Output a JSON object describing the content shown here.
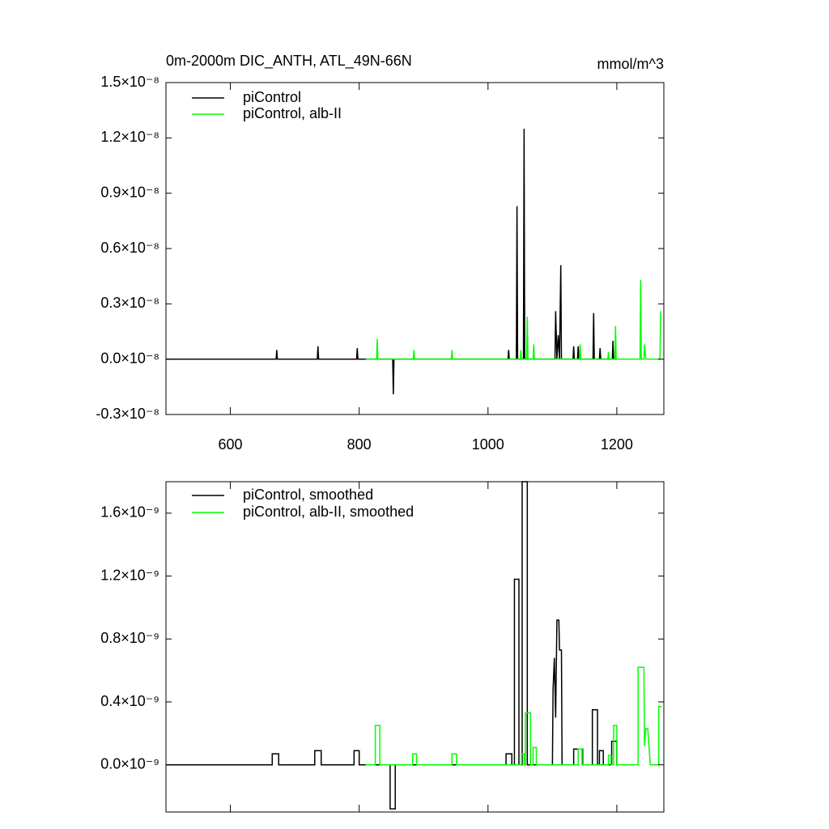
{
  "chart_data": [
    {
      "type": "line",
      "title": "0m-2000m DIC_ANTH, ATL_49N-66N",
      "units": "mmol/m^3",
      "legend": "upper left",
      "xlim": [
        500,
        1273
      ],
      "xticks": [
        600,
        800,
        1000,
        1200
      ],
      "show_xtick_labels": true,
      "ylim": [
        -3e-09,
        1.5e-08
      ],
      "yticks": [
        {
          "value": -3e-09,
          "label": "-0.3×10⁻⁸"
        },
        {
          "value": 0,
          "label": "0.0×10⁻⁸"
        },
        {
          "value": 3e-09,
          "label": "0.3×10⁻⁸"
        },
        {
          "value": 6e-09,
          "label": "0.6×10⁻⁸"
        },
        {
          "value": 9e-09,
          "label": "0.9×10⁻⁸"
        },
        {
          "value": 1.2e-08,
          "label": "1.2×10⁻⁸"
        },
        {
          "value": 1.5e-08,
          "label": "1.5×10⁻⁸"
        }
      ],
      "series": [
        {
          "name": "piControl",
          "color": "#000000",
          "x": [
            500,
            671,
            672,
            673,
            735,
            736,
            737,
            796,
            797,
            798,
            852,
            853,
            854,
            1031,
            1032,
            1033,
            1044,
            1045,
            1046,
            1055,
            1056,
            1057,
            1104,
            1105,
            1107,
            1109,
            1111,
            1113,
            1114,
            1132,
            1133,
            1134,
            1139,
            1140,
            1141,
            1163,
            1164,
            1165,
            1173,
            1174,
            1175,
            1193,
            1194,
            1195,
            1200
          ],
          "values": [
            0,
            0,
            5e-10,
            0,
            0,
            7e-10,
            0,
            0,
            6e-10,
            0,
            0,
            -1.9e-09,
            0,
            0,
            5e-10,
            0,
            0,
            8.3e-09,
            0,
            0,
            1.25e-08,
            0,
            0,
            2.6e-09,
            0,
            1.3e-09,
            0,
            5.1e-09,
            0,
            0,
            7e-10,
            0,
            0,
            7e-10,
            0,
            0,
            2.5e-09,
            0,
            0,
            6e-10,
            0,
            0,
            1e-09,
            0,
            0
          ]
        },
        {
          "name": "piControl, alb-II",
          "color": "#00ff00",
          "x": [
            810,
            827,
            828,
            829,
            884,
            885,
            886,
            943,
            944,
            945,
            1050,
            1051,
            1052,
            1060,
            1061,
            1062,
            1070,
            1071,
            1072,
            1142,
            1143,
            1144,
            1186,
            1187,
            1188,
            1197,
            1198,
            1199,
            1236,
            1237,
            1238,
            1242,
            1243,
            1245,
            1267,
            1268
          ],
          "values": [
            0,
            0,
            1.1e-09,
            0,
            0,
            5e-10,
            0,
            0,
            5e-10,
            0,
            0,
            5e-10,
            0,
            0,
            2.3e-09,
            0,
            0,
            8e-10,
            0,
            0,
            8e-10,
            0,
            0,
            4e-10,
            0,
            0,
            1.8e-09,
            0,
            0,
            4.3e-09,
            0,
            0,
            8e-10,
            0,
            0,
            2.6e-09
          ]
        }
      ]
    },
    {
      "type": "line",
      "legend": "upper left",
      "xlim": [
        500,
        1273
      ],
      "xticks": [
        600,
        800,
        1000,
        1200
      ],
      "show_xtick_labels": false,
      "ylim": [
        -3e-10,
        1.8e-09
      ],
      "yticks": [
        {
          "value": 0,
          "label": "0.0×10⁻⁹"
        },
        {
          "value": 4e-10,
          "label": "0.4×10⁻⁹"
        },
        {
          "value": 8e-10,
          "label": "0.8×10⁻⁹"
        },
        {
          "value": 1.2e-09,
          "label": "1.2×10⁻⁹"
        },
        {
          "value": 1.6e-09,
          "label": "1.6×10⁻⁹"
        }
      ],
      "series": [
        {
          "name": "piControl, smoothed",
          "color": "#000000",
          "x": [
            500,
            665,
            665,
            675,
            675,
            731,
            731,
            741,
            741,
            792,
            792,
            800,
            800,
            848,
            848,
            856,
            856,
            1028,
            1028,
            1037,
            1037,
            1041,
            1041,
            1048,
            1048,
            1053,
            1053,
            1061,
            1061,
            1100,
            1101,
            1103,
            1105,
            1107,
            1110,
            1111,
            1114,
            1115,
            1133,
            1133,
            1147,
            1147,
            1162,
            1162,
            1170,
            1170,
            1173,
            1173,
            1179,
            1179,
            1192,
            1192,
            1200,
            1200
          ],
          "values": [
            0,
            0,
            7e-11,
            7e-11,
            0,
            0,
            9e-11,
            9e-11,
            0,
            0,
            9e-11,
            9e-11,
            0,
            0,
            -2.8e-10,
            -2.8e-10,
            0,
            0,
            7e-11,
            7e-11,
            0,
            0,
            1.18e-09,
            1.18e-09,
            0,
            0,
            1.8e-09,
            1.8e-09,
            0,
            0,
            4.8e-10,
            6.8e-10,
            3e-10,
            9.2e-10,
            9.2e-10,
            7.3e-10,
            7.3e-10,
            0,
            0,
            1e-10,
            1e-10,
            0,
            0,
            3.5e-10,
            3.5e-10,
            0,
            0,
            9e-11,
            9e-11,
            0,
            0,
            1.5e-10,
            1.5e-10,
            0
          ]
        },
        {
          "name": "piControl, alb-II, smoothed",
          "color": "#00ff00",
          "x": [
            810,
            825,
            825,
            832,
            832,
            883,
            883,
            889,
            889,
            944,
            944,
            951,
            951,
            1052,
            1052,
            1056,
            1056,
            1058,
            1058,
            1066,
            1066,
            1070,
            1070,
            1075,
            1075,
            1140,
            1140,
            1146,
            1146,
            1187,
            1187,
            1191,
            1191,
            1195,
            1195,
            1200,
            1200,
            1233,
            1233,
            1242,
            1243,
            1245,
            1248,
            1252,
            1265,
            1265,
            1270
          ],
          "values": [
            0,
            0,
            2.5e-10,
            2.5e-10,
            0,
            0,
            7e-11,
            7e-11,
            0,
            0,
            7e-11,
            7e-11,
            0,
            0,
            7e-11,
            7e-11,
            0,
            0,
            3.3e-10,
            3.3e-10,
            0,
            0,
            1.1e-10,
            1.1e-10,
            0,
            0,
            1e-10,
            1e-10,
            0,
            0,
            6e-11,
            6e-11,
            0,
            0,
            2.5e-10,
            2.5e-10,
            0,
            0,
            6.2e-10,
            6.2e-10,
            1.2e-10,
            2.3e-10,
            2.3e-10,
            0,
            0,
            3.7e-10,
            3.7e-10
          ]
        }
      ]
    }
  ]
}
